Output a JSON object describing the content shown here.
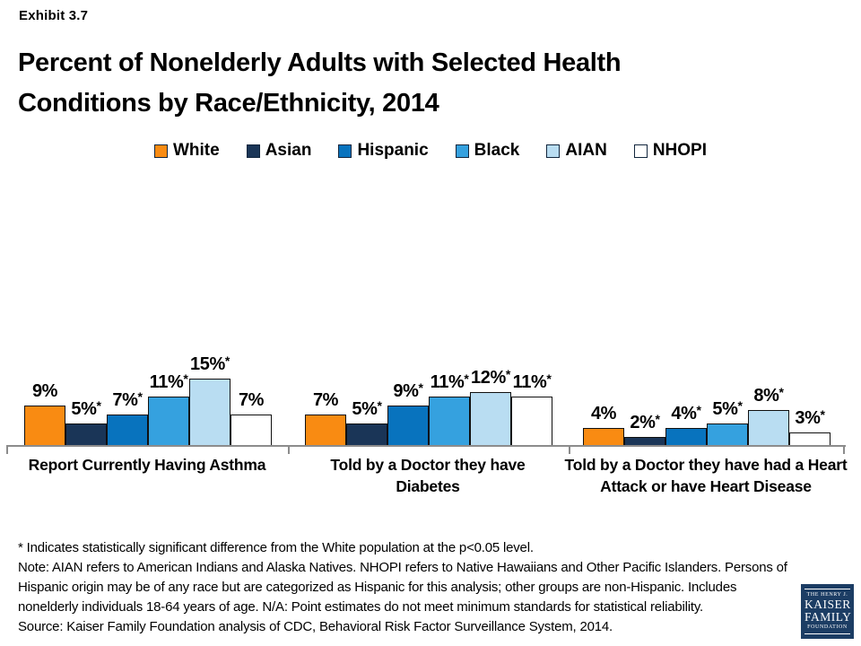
{
  "exhibit": {
    "label": "Exhibit 3.7"
  },
  "title": {
    "line1": "Percent of Nonelderly Adults with Selected Health",
    "line2": "Conditions by Race/Ethnicity, 2014"
  },
  "chart_data": {
    "type": "bar",
    "title": "Percent of Nonelderly Adults with Selected Health Conditions by Race/Ethnicity, 2014",
    "categories": [
      "Report Currently Having Asthma",
      "Told by a Doctor they have Diabetes",
      "Told by a Doctor they have had a Heart Attack or have Heart Disease"
    ],
    "series": [
      {
        "name": "White",
        "color": "#F98B12",
        "values": [
          9,
          7,
          4
        ],
        "sig": [
          false,
          false,
          false
        ]
      },
      {
        "name": "Asian",
        "color": "#1A3557",
        "values": [
          5,
          5,
          2
        ],
        "sig": [
          true,
          true,
          true
        ]
      },
      {
        "name": "Hispanic",
        "color": "#0873BE",
        "values": [
          7,
          9,
          4
        ],
        "sig": [
          true,
          true,
          true
        ]
      },
      {
        "name": "Black",
        "color": "#35A1DF",
        "values": [
          11,
          11,
          5
        ],
        "sig": [
          true,
          true,
          true
        ]
      },
      {
        "name": "AIAN",
        "color": "#B9DDF2",
        "values": [
          15,
          12,
          8
        ],
        "sig": [
          true,
          true,
          true
        ]
      },
      {
        "name": "NHOPI",
        "color": "#FFFFFF",
        "values": [
          7,
          11,
          3
        ],
        "sig": [
          false,
          true,
          true
        ]
      }
    ],
    "value_suffix": "%",
    "sig_marker": "*",
    "ylim": [
      0,
      16
    ],
    "grid": false,
    "legend_position": "top",
    "axis_color": "#8c8c8c",
    "bar_border_color": "#101010"
  },
  "footnotes": {
    "sig": "* Indicates statistically significant difference from the White population at the p<0.05 level.",
    "note": "Note: AIAN refers to American Indians and Alaska Natives. NHOPI refers to Native Hawaiians and Other Pacific Islanders. Persons of Hispanic origin may be of any race but are categorized as Hispanic for this analysis; other groups are non-Hispanic. Includes nonelderly individuals 18-64 years of age. N/A: Point estimates do not meet minimum standards for statistical reliability.",
    "source": "Source: Kaiser Family Foundation analysis of CDC, Behavioral Risk Factor Surveillance System, 2014."
  },
  "logo": {
    "line1": "THE HENRY J.",
    "line2": "KAISER",
    "line3": "FAMILY",
    "line4": "FOUNDATION",
    "bg_color": "#1c3d64"
  }
}
